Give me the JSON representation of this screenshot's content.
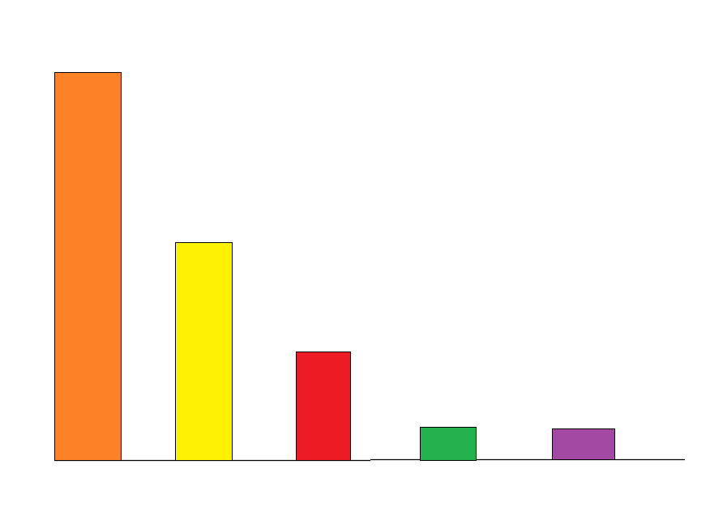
{
  "chart_data": {
    "type": "bar",
    "title": "",
    "xlabel": "",
    "ylabel": "",
    "categories": [
      "",
      "",
      "",
      "",
      ""
    ],
    "values": [
      479,
      269,
      134,
      41,
      38
    ],
    "colors": [
      "#fd8127",
      "#fff200",
      "#ed1c24",
      "#22b14c",
      "#a349a4"
    ],
    "ylim": [
      0,
      500
    ],
    "grid": false,
    "legend": "none",
    "bar_outline_color": "#000000"
  }
}
